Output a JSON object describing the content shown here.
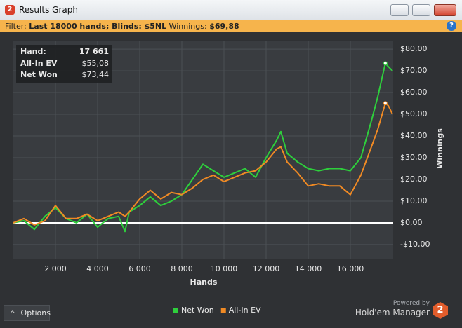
{
  "window": {
    "title": "Results Graph",
    "logo": "2",
    "help": "?"
  },
  "filter": {
    "label": "Filter:",
    "text": "Last 18000 hands; Blinds: $5NL",
    "winnings_label": "Winnings:",
    "winnings_value": "$69,88"
  },
  "tooltip": {
    "hand_label": "Hand:",
    "hand_value": "17 661",
    "ev_label": "All-In EV",
    "ev_value": "$55,08",
    "net_label": "Net Won",
    "net_value": "$73,44"
  },
  "footer": {
    "options": "Options",
    "powered_by": "Powered by",
    "product": "Hold'em Manager",
    "logo": "2"
  },
  "chart_data": {
    "type": "line",
    "x_label": "Hands",
    "y_label": "Winnings",
    "x": [
      0,
      500,
      1000,
      1500,
      2000,
      2500,
      3000,
      3500,
      4000,
      4500,
      5000,
      5300,
      5500,
      6000,
      6500,
      7000,
      7500,
      8000,
      8500,
      9000,
      9500,
      10000,
      10500,
      11000,
      11500,
      12000,
      12500,
      12700,
      13000,
      13500,
      14000,
      14500,
      15000,
      15500,
      16000,
      16500,
      17000,
      17300,
      17661,
      17800,
      18000
    ],
    "series": [
      {
        "name": "Net Won",
        "color": "#2ecf3c",
        "values": [
          0,
          1,
          -3,
          3,
          7,
          2,
          0,
          4,
          -2,
          2,
          3,
          -4,
          5,
          8,
          12,
          8,
          10,
          13,
          20,
          27,
          24,
          21,
          23,
          25,
          21,
          30,
          38,
          42,
          32,
          28,
          25,
          24,
          25,
          25,
          24,
          30,
          47,
          58,
          73.44,
          72,
          70
        ]
      },
      {
        "name": "All-In EV",
        "color": "#f08a24",
        "values": [
          0,
          2,
          -1,
          1,
          8,
          2,
          2,
          4,
          1,
          3,
          5,
          3,
          5,
          11,
          15,
          11,
          14,
          13,
          16,
          20,
          22,
          19,
          21,
          23,
          24,
          28,
          34,
          35,
          28,
          23,
          17,
          18,
          17,
          17,
          13,
          22,
          35,
          43,
          55.08,
          54,
          50
        ]
      }
    ],
    "xlim": [
      0,
      18033
    ],
    "ylim": [
      -16.8,
      83.9
    ],
    "xticks": [
      {
        "value": 2000,
        "label": "2 000"
      },
      {
        "value": 4000,
        "label": "4 000"
      },
      {
        "value": 6000,
        "label": "6 000"
      },
      {
        "value": 8000,
        "label": "8 000"
      },
      {
        "value": 10000,
        "label": "10 000"
      },
      {
        "value": 12000,
        "label": "12 000"
      },
      {
        "value": 14000,
        "label": "14 000"
      },
      {
        "value": 16000,
        "label": "16 000"
      }
    ],
    "yticks": [
      {
        "value": -10,
        "label": "-$10,00"
      },
      {
        "value": 0,
        "label": "$0,00"
      },
      {
        "value": 10,
        "label": "$10,00"
      },
      {
        "value": 20,
        "label": "$20,00"
      },
      {
        "value": 30,
        "label": "$30,00"
      },
      {
        "value": 40,
        "label": "$40,00"
      },
      {
        "value": 50,
        "label": "$50,00"
      },
      {
        "value": 60,
        "label": "$60,00"
      },
      {
        "value": 70,
        "label": "$70,00"
      },
      {
        "value": 80,
        "label": "$80,00"
      }
    ],
    "grid": true,
    "legend": "bottom"
  }
}
